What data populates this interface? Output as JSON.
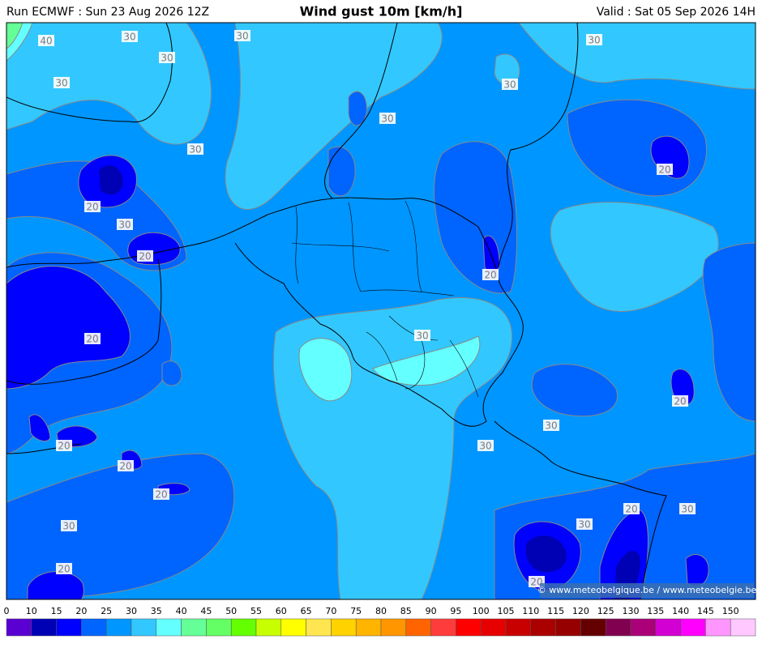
{
  "header": {
    "run": "Run ECMWF : Sun 23 Aug 2026 12Z",
    "title": "Wind gust 10m [km/h]",
    "valid": "Valid : Sat 05 Sep 2026 14H"
  },
  "map": {
    "contour_labels": [
      40,
      30,
      30,
      30,
      30,
      30,
      30,
      30,
      30,
      20,
      20,
      30,
      20,
      20,
      20,
      30,
      20,
      30,
      20,
      30,
      20,
      20,
      20,
      30,
      30,
      30,
      20,
      20
    ],
    "credit": "© www.meteobelgique.be / www.meteobelgie.be"
  },
  "legend": {
    "ticks": [
      0,
      10,
      15,
      20,
      25,
      30,
      35,
      40,
      45,
      50,
      55,
      60,
      65,
      70,
      75,
      80,
      85,
      90,
      95,
      100,
      105,
      110,
      115,
      120,
      125,
      130,
      135,
      140,
      145,
      150
    ],
    "colors": [
      "#5a00d2",
      "#0000b4",
      "#0000ff",
      "#0064ff",
      "#0096ff",
      "#32c8ff",
      "#64ffff",
      "#64ff96",
      "#64ff64",
      "#64ff00",
      "#c8ff00",
      "#ffff00",
      "#ffe650",
      "#ffd200",
      "#ffb400",
      "#ff9600",
      "#ff6400",
      "#ff3c3c",
      "#ff0000",
      "#e60000",
      "#c80000",
      "#aa0000",
      "#960000",
      "#640000",
      "#820050",
      "#aa0078",
      "#d200d2",
      "#ff00ff",
      "#ff96ff",
      "#ffc8ff"
    ]
  }
}
